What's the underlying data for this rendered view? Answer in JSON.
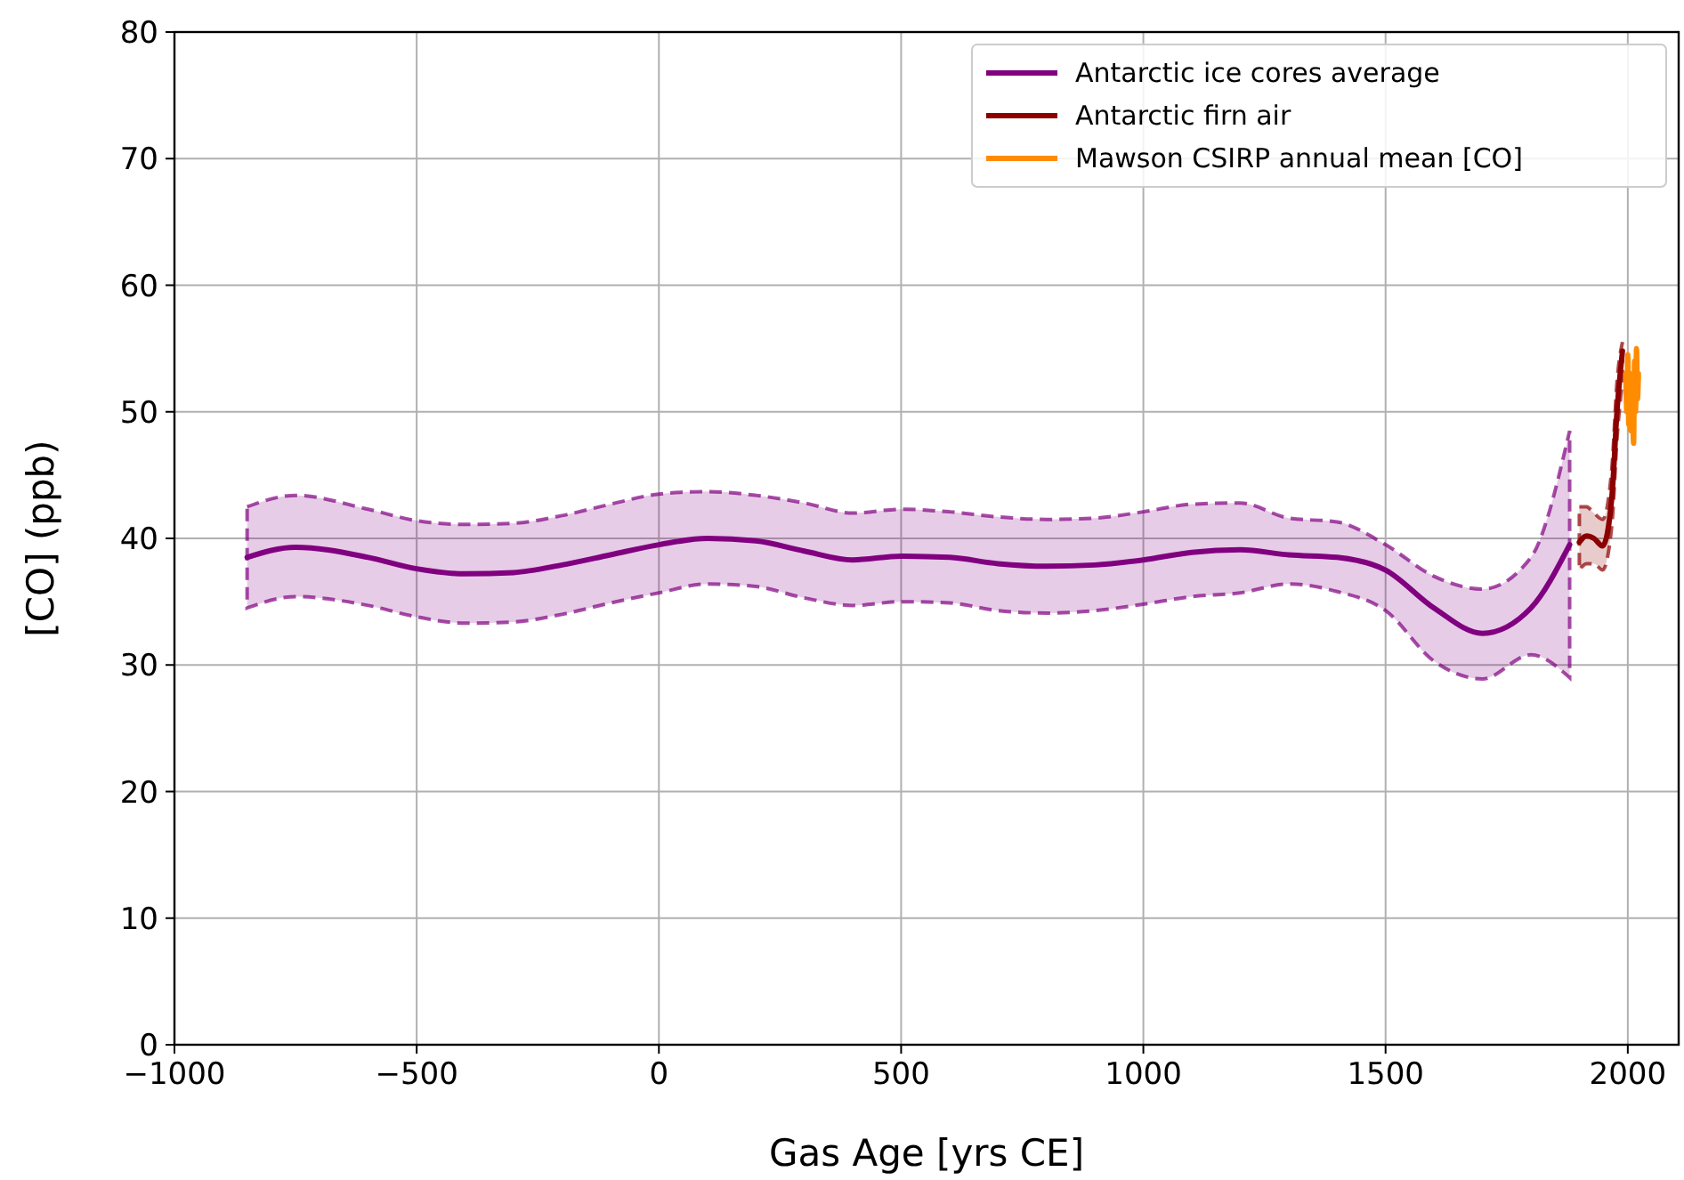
{
  "chart_data": {
    "type": "line",
    "xlabel": "Gas Age [yrs CE]",
    "ylabel": "[CO] (ppb)",
    "xlim": [
      -1000,
      2105
    ],
    "ylim": [
      0,
      80
    ],
    "xticks": [
      {
        "value": -1000,
        "label": "−1000"
      },
      {
        "value": -500,
        "label": "−500"
      },
      0,
      500,
      1000,
      1500,
      2000
    ],
    "yticks": [
      0,
      10,
      20,
      30,
      40,
      50,
      60,
      70,
      80
    ],
    "grid": true,
    "legend": "top right",
    "line_style": "solid",
    "marker": "none",
    "series": [
      {
        "name": "Antarctic ice cores average",
        "color": "#800080",
        "x": [
          -850,
          -750,
          -600,
          -500,
          -400,
          -300,
          -200,
          -100,
          0,
          100,
          200,
          300,
          400,
          500,
          600,
          700,
          800,
          900,
          1000,
          1100,
          1200,
          1300,
          1400,
          1500,
          1600,
          1700,
          1800,
          1880
        ],
        "values": [
          38.5,
          39.3,
          38.5,
          37.6,
          37.2,
          37.3,
          37.9,
          38.7,
          39.5,
          40.0,
          39.8,
          39.0,
          38.3,
          38.6,
          38.5,
          38.0,
          37.8,
          37.9,
          38.3,
          38.9,
          39.1,
          38.7,
          38.5,
          37.5,
          34.5,
          32.5,
          34.5,
          39.5
        ],
        "upper": [
          42.5,
          43.4,
          42.3,
          41.4,
          41.1,
          41.2,
          41.8,
          42.7,
          43.5,
          43.7,
          43.4,
          42.8,
          42.0,
          42.3,
          42.1,
          41.7,
          41.5,
          41.6,
          42.1,
          42.7,
          42.8,
          41.6,
          41.3,
          39.5,
          37.0,
          36.0,
          38.5,
          48.5
        ],
        "lower": [
          34.5,
          35.4,
          34.7,
          33.8,
          33.3,
          33.4,
          34.0,
          34.9,
          35.7,
          36.4,
          36.2,
          35.3,
          34.7,
          35.0,
          34.9,
          34.3,
          34.1,
          34.3,
          34.8,
          35.4,
          35.7,
          36.4,
          35.8,
          34.3,
          30.3,
          28.9,
          30.8,
          29.0
        ]
      },
      {
        "name": "Antarctic firn air",
        "color": "#8b0000",
        "x": [
          1900,
          1915,
          1930,
          1948,
          1967,
          1978,
          1989
        ],
        "values": [
          39.7,
          40.2,
          40.0,
          39.4,
          43.2,
          50.2,
          54.8
        ],
        "upper": [
          42.5,
          42.5,
          42.0,
          41.5,
          45.5,
          52.5,
          55.5
        ],
        "lower": [
          37.5,
          38.0,
          38.0,
          37.5,
          41.0,
          48.0,
          52.5
        ]
      },
      {
        "name": "Mawson CSIRP annual mean [CO]",
        "color": "#ff8c00",
        "x": [
          1996,
          1998,
          2000,
          2002,
          2004,
          2006,
          2008,
          2010,
          2012,
          2014,
          2016,
          2018,
          2020,
          2022
        ],
        "values": [
          53,
          50,
          54.5,
          49,
          52,
          48.5,
          53,
          50,
          47.5,
          54,
          50,
          55,
          51,
          53
        ]
      }
    ]
  }
}
